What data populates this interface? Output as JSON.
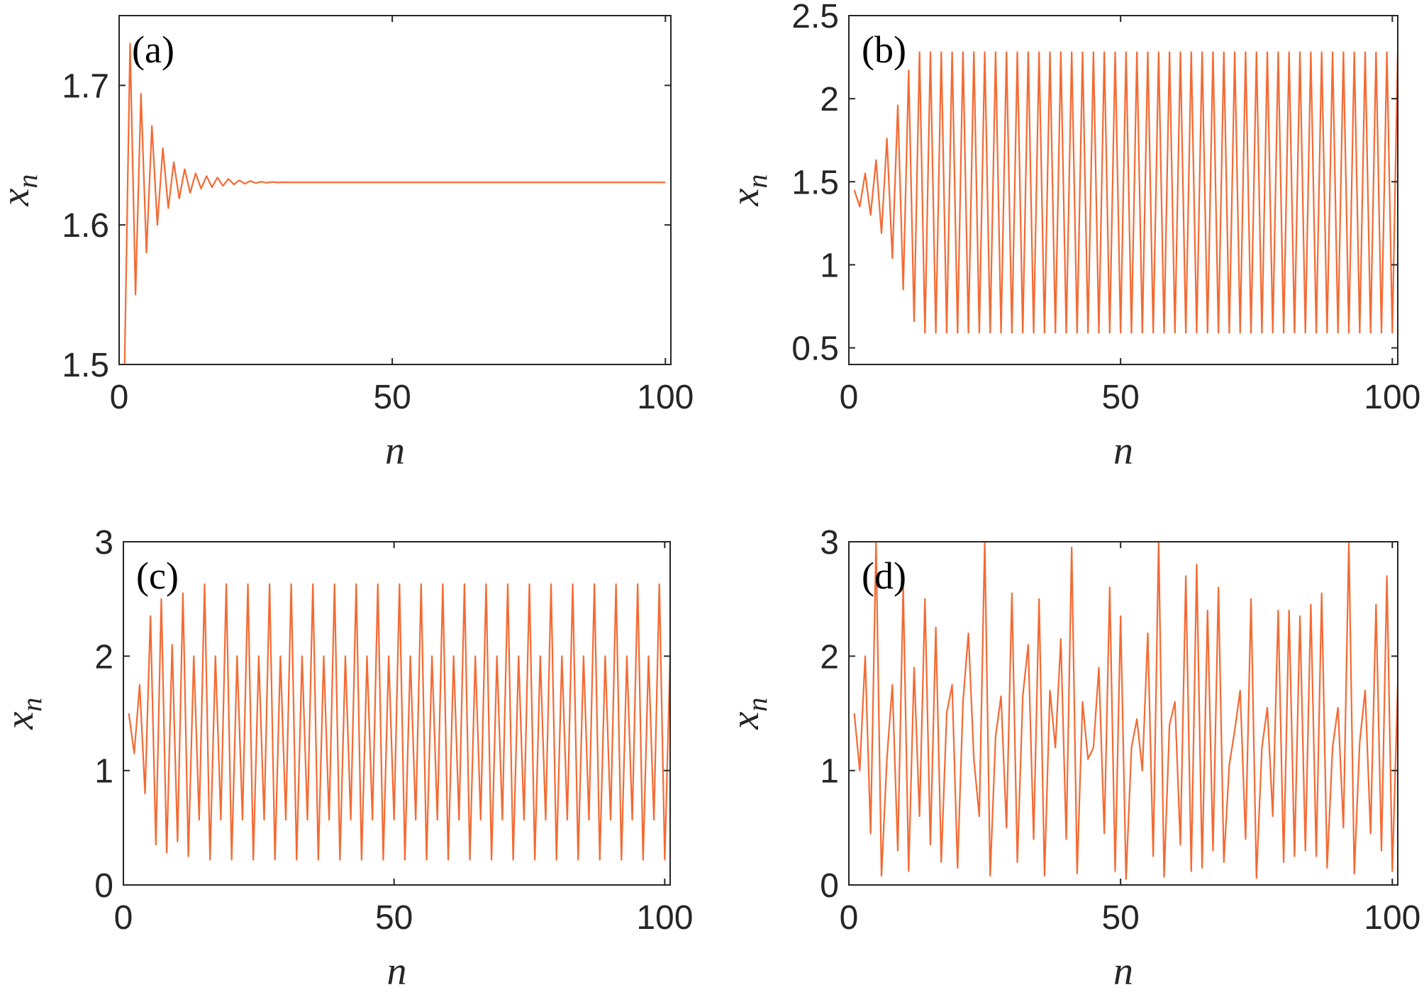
{
  "colors": {
    "series": "#f46a33",
    "axis": "#262626"
  },
  "chart_data": [
    {
      "type": "line",
      "panel_label": "(a)",
      "xlabel": "n",
      "ylabel": "x",
      "ylabel_sub": "n",
      "xlim": [
        0,
        101
      ],
      "ylim": [
        1.5,
        1.75
      ],
      "xticks": [
        0,
        50,
        100
      ],
      "yticks": [
        1.5,
        1.6,
        1.7
      ],
      "grid": false,
      "model": "converge",
      "x": [
        1,
        2,
        3,
        4,
        5,
        6,
        7,
        8,
        9,
        10,
        11,
        12,
        13,
        14,
        15,
        16,
        17,
        18,
        19,
        20,
        21,
        22,
        23,
        24,
        25,
        26,
        27,
        28,
        29,
        30,
        31,
        32,
        100
      ],
      "y": [
        1.5,
        1.73,
        1.55,
        1.694,
        1.58,
        1.671,
        1.6,
        1.655,
        1.612,
        1.645,
        1.619,
        1.64,
        1.623,
        1.637,
        1.626,
        1.635,
        1.627,
        1.634,
        1.628,
        1.633,
        1.629,
        1.632,
        1.6295,
        1.6315,
        1.63,
        1.631,
        1.6302,
        1.6308,
        1.6304,
        1.6306,
        1.6305,
        1.6305,
        1.6305
      ]
    },
    {
      "type": "line",
      "panel_label": "(b)",
      "xlabel": "n",
      "ylabel": "x",
      "ylabel_sub": "n",
      "xlim": [
        0,
        101
      ],
      "ylim": [
        0.4,
        2.5
      ],
      "xticks": [
        0,
        50,
        100
      ],
      "yticks": [
        0.5,
        1,
        1.5,
        2,
        2.5
      ],
      "ytick_labels": [
        "0.5",
        "1",
        "1.5",
        "2",
        "2.5"
      ],
      "grid": false,
      "model": "period2",
      "n_points": 101,
      "start": [
        1.45,
        1.35,
        1.55,
        1.3,
        1.63,
        1.19,
        1.76,
        1.04,
        1.96,
        0.85,
        2.17,
        0.66
      ],
      "cycle": [
        2.28,
        0.59
      ]
    },
    {
      "type": "line",
      "panel_label": "(c)",
      "xlabel": "n",
      "ylabel": "x",
      "ylabel_sub": "n",
      "xlim": [
        0,
        101
      ],
      "ylim": [
        0,
        3
      ],
      "xticks": [
        0,
        50,
        100
      ],
      "yticks": [
        0,
        1,
        2,
        3
      ],
      "grid": false,
      "model": "period4",
      "n_points": 101,
      "start": [
        1.5,
        1.15,
        1.75,
        0.8,
        2.35,
        0.35,
        2.5,
        0.28,
        2.1,
        0.38,
        2.55,
        0.25
      ],
      "cycle": [
        2.0,
        0.57,
        2.63,
        0.22
      ]
    },
    {
      "type": "line",
      "panel_label": "(d)",
      "xlabel": "n",
      "ylabel": "x",
      "ylabel_sub": "n",
      "xlim": [
        0,
        101
      ],
      "ylim": [
        0,
        3
      ],
      "xticks": [
        0,
        50,
        100
      ],
      "yticks": [
        0,
        1,
        2,
        3
      ],
      "grid": false,
      "model": "chaotic",
      "x_start": 1,
      "y": [
        1.5,
        1.0,
        2.0,
        0.45,
        3.0,
        0.08,
        1.1,
        1.75,
        0.3,
        2.6,
        0.12,
        1.9,
        0.6,
        2.5,
        0.35,
        2.25,
        0.2,
        1.5,
        1.75,
        0.15,
        1.6,
        2.2,
        1.1,
        0.6,
        3.0,
        0.08,
        1.3,
        1.65,
        0.5,
        2.55,
        0.2,
        1.65,
        2.1,
        0.4,
        2.5,
        0.08,
        1.7,
        1.2,
        2.15,
        0.4,
        2.95,
        0.1,
        1.6,
        1.1,
        1.2,
        1.9,
        0.45,
        2.6,
        0.12,
        2.35,
        0.05,
        1.2,
        1.45,
        1.0,
        2.2,
        0.25,
        3.0,
        0.07,
        1.4,
        1.6,
        0.35,
        2.7,
        0.12,
        2.8,
        0.15,
        2.4,
        0.3,
        2.6,
        0.2,
        1.05,
        1.35,
        1.7,
        0.4,
        2.5,
        0.06,
        1.2,
        1.55,
        0.6,
        2.4,
        0.2,
        2.4,
        0.25,
        2.35,
        0.3,
        2.45,
        0.25,
        2.55,
        0.15,
        1.2,
        1.55,
        0.5,
        3.0,
        0.1,
        1.25,
        1.7,
        0.45,
        2.45,
        0.3,
        2.7,
        0.12,
        1.75
      ]
    }
  ]
}
